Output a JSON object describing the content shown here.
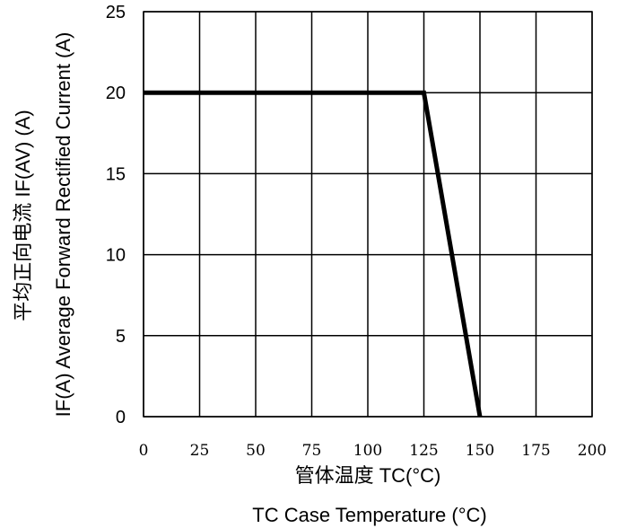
{
  "chart_data": {
    "type": "line",
    "title": "",
    "x": [
      0,
      125,
      150
    ],
    "series": [
      {
        "values": [
          20,
          20,
          0
        ]
      }
    ],
    "xlim": [
      0,
      200
    ],
    "ylim": [
      0,
      25
    ],
    "xticks": [
      0,
      25,
      50,
      75,
      100,
      125,
      150,
      175,
      200
    ],
    "yticks": [
      0,
      5,
      10,
      15,
      20,
      25
    ],
    "xlabel_line1": "管体温度 TC(°C)",
    "xlabel_line2": "TC  Case Temperature (°C)",
    "ylabel_line1": "平均正向电流    IF(AV) (A)",
    "ylabel_line2": "IF(A)  Average Forward Rectified Current (A)",
    "grid": true,
    "colors": {
      "line": "#000000",
      "grid": "#000000",
      "background": "#ffffff"
    }
  }
}
